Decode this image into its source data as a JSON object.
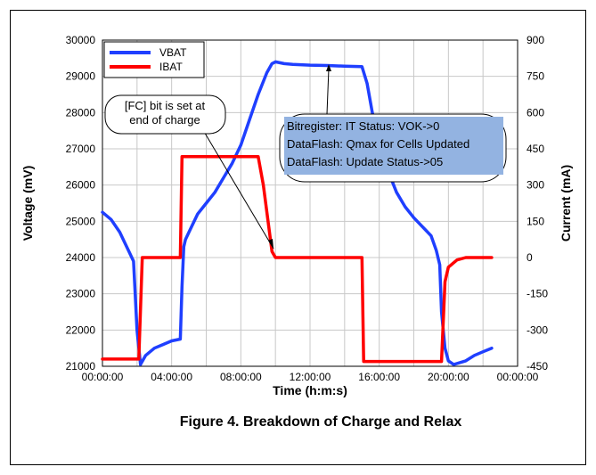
{
  "figure_caption": "Figure 4. Breakdown of Charge and Relax",
  "chart_data": {
    "type": "line",
    "xlabel": "Time (h:m:s)",
    "ylabel_left": "Voltage (mV)",
    "ylabel_right": "Current (mA)",
    "x_unit": "hours",
    "xlim": [
      0,
      24
    ],
    "ylim_left": [
      21000,
      30000
    ],
    "ylim_right": [
      -450,
      900
    ],
    "x_ticks": [
      "00:00:00",
      "04:00:00",
      "08:00:00",
      "12:00:00",
      "16:00:00",
      "20:00:00",
      "00:00:00"
    ],
    "y_left_ticks": [
      "21000",
      "22000",
      "23000",
      "24000",
      "25000",
      "26000",
      "27000",
      "28000",
      "29000",
      "30000"
    ],
    "y_right_ticks": [
      "-450",
      "-300",
      "-150",
      "0",
      "150",
      "300",
      "450",
      "600",
      "750",
      "900"
    ],
    "grid": true,
    "legend_position": "top-left",
    "series": [
      {
        "name": "VBAT",
        "color": "#1f3fff",
        "axis": "left",
        "x": [
          0,
          0.5,
          1.0,
          1.5,
          1.8,
          2.0,
          2.2,
          2.5,
          3.0,
          3.5,
          4.0,
          4.5,
          4.6,
          4.7,
          4.8,
          5.0,
          5.5,
          6.0,
          6.5,
          7.0,
          7.5,
          8.0,
          8.5,
          9.0,
          9.5,
          9.8,
          10.0,
          10.5,
          11.0,
          12.0,
          13.0,
          14.0,
          15.0,
          15.3,
          15.6,
          16.0,
          16.5,
          17.0,
          17.5,
          18.0,
          18.5,
          19.0,
          19.3,
          19.5,
          19.6,
          19.8,
          20.0,
          20.3,
          21.0,
          21.5,
          22.0,
          22.5
        ],
        "values": [
          25250,
          25050,
          24700,
          24200,
          23900,
          22000,
          21050,
          21300,
          21500,
          21600,
          21700,
          21750,
          23200,
          24300,
          24500,
          24700,
          25200,
          25500,
          25800,
          26200,
          26600,
          27100,
          27800,
          28500,
          29100,
          29350,
          29400,
          29350,
          29330,
          29310,
          29300,
          29280,
          29270,
          28800,
          28000,
          27200,
          26400,
          25800,
          25400,
          25100,
          24850,
          24600,
          24200,
          23800,
          22500,
          21500,
          21150,
          21050,
          21150,
          21300,
          21400,
          21500
        ]
      },
      {
        "name": "IBAT",
        "color": "#ff0000",
        "axis": "right",
        "x": [
          0,
          2.0,
          2.1,
          2.3,
          2.5,
          4.5,
          4.6,
          9.0,
          9.3,
          9.8,
          10.0,
          15.0,
          15.1,
          19.5,
          19.6,
          19.8,
          20.0,
          20.5,
          21.0,
          22.5
        ],
        "values": [
          -420,
          -420,
          -420,
          0,
          0,
          0,
          418,
          418,
          300,
          25,
          0,
          0,
          -430,
          -430,
          -430,
          -100,
          -40,
          -10,
          0,
          0
        ]
      }
    ],
    "annotations": [
      {
        "lines": [
          "[FC] bit is set at",
          "end of charge"
        ]
      },
      {
        "lines": [
          "Bitregister: IT Status: VOK->0",
          "DataFlash: Qmax for Cells Updated",
          "DataFlash: Update Status->05"
        ]
      }
    ]
  }
}
